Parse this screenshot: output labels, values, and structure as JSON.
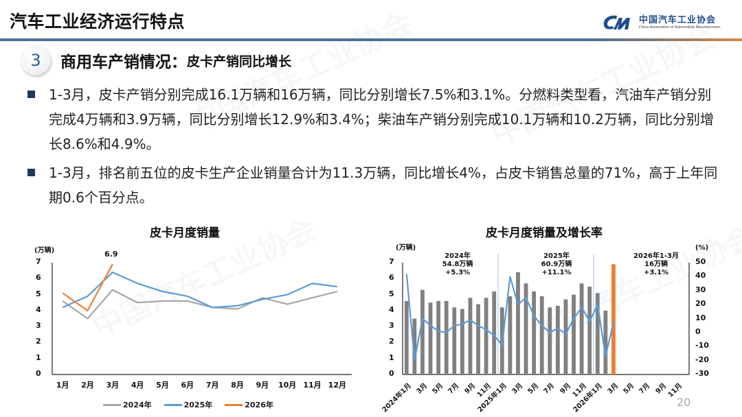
{
  "header": {
    "title": "汽车工业经济运行特点",
    "logo": {
      "name_cn": "中国汽车工业协会",
      "name_en": "China Association of Automobile Manufacturers",
      "icon": "caam-logo-icon"
    }
  },
  "section": {
    "number": "3",
    "title": "商用车产销情况：",
    "subtitle": "皮卡产销同比增长"
  },
  "bullets": [
    {
      "text": "1-3月，皮卡产销分别完成16.1万辆和16万辆，同比分别增长7.5%和3.1%。分燃料类型看，汽油车产销分别完成4万辆和3.9万辆，同比分别增长12.9%和3.4%；柴油车产销分别完成10.1万辆和10.2万辆，同比分别增长8.6%和4.9%。"
    },
    {
      "text": "1-3月，排名前五位的皮卡生产企业销量合计为11.3万辆，同比增长4%，占皮卡销售总量的71%，高于上年同期0.6个百分点。"
    }
  ],
  "colors": {
    "accent_blue": "#4d6f95",
    "accent_orange": "#d4894a",
    "series_2024": "#a6a6a6",
    "series_2025": "#5b9bd5",
    "series_2026": "#ed7d31",
    "bar_gray": "#808080",
    "bullet": "#1f3864"
  },
  "page_number": "20",
  "chart_data": [
    {
      "type": "line",
      "title": "皮卡月度销量",
      "ylabel": "(万辆)",
      "ylim": [
        0,
        7
      ],
      "yticks": [
        "0",
        "1",
        "2",
        "3",
        "4",
        "5",
        "6",
        "7"
      ],
      "categories": [
        "1月",
        "2月",
        "3月",
        "4月",
        "5月",
        "6月",
        "7月",
        "8月",
        "9月",
        "10月",
        "11月",
        "12月"
      ],
      "series": [
        {
          "name": "2024年",
          "values": [
            4.6,
            3.5,
            5.3,
            4.5,
            4.6,
            4.6,
            4.2,
            4.1,
            4.8,
            4.4,
            4.8,
            5.2
          ]
        },
        {
          "name": "2025年",
          "values": [
            4.2,
            4.9,
            6.4,
            5.7,
            5.2,
            4.9,
            4.2,
            4.3,
            4.7,
            5.0,
            5.7,
            5.5
          ]
        },
        {
          "name": "2026年",
          "values": [
            5.1,
            4.0,
            6.9
          ]
        }
      ],
      "annotations": [
        {
          "label": "6.9",
          "series": "2026年",
          "category": "3月"
        }
      ],
      "grid": false,
      "legend_position": "bottom"
    },
    {
      "type": "bar+line",
      "title": "皮卡月度销量及增长率",
      "ylabel_left": "(万辆)",
      "ylabel_right": "(%)",
      "ylim_left": [
        0,
        7
      ],
      "ylim_right": [
        -30,
        50
      ],
      "yticks_left": [
        "0",
        "1",
        "2",
        "3",
        "4",
        "5",
        "6",
        "7"
      ],
      "yticks_right": [
        "-30",
        "-20",
        "-10",
        "0",
        "10",
        "20",
        "30",
        "40",
        "50"
      ],
      "x_tick_labels": [
        "2024年1月",
        "3月",
        "5月",
        "7月",
        "9月",
        "11月",
        "2025年1月",
        "3月",
        "5月",
        "7月",
        "9月",
        "11月",
        "2026年1月",
        "3月",
        "5月",
        "7月",
        "9月",
        "11月"
      ],
      "categories": [
        "2024-01",
        "2024-02",
        "2024-03",
        "2024-04",
        "2024-05",
        "2024-06",
        "2024-07",
        "2024-08",
        "2024-09",
        "2024-10",
        "2024-11",
        "2024-12",
        "2025-01",
        "2025-02",
        "2025-03",
        "2025-04",
        "2025-05",
        "2025-06",
        "2025-07",
        "2025-08",
        "2025-09",
        "2025-10",
        "2025-11",
        "2025-12",
        "2026-01",
        "2026-02",
        "2026-03"
      ],
      "series": [
        {
          "name": "销量",
          "axis": "left",
          "kind": "bar",
          "values": [
            4.6,
            3.5,
            5.3,
            4.5,
            4.6,
            4.6,
            4.2,
            4.1,
            4.8,
            4.4,
            4.8,
            5.2,
            4.2,
            4.9,
            6.4,
            5.7,
            5.2,
            4.9,
            4.2,
            4.3,
            4.7,
            5.0,
            5.7,
            5.5,
            5.1,
            4.0,
            6.9
          ],
          "highlight_last": true
        },
        {
          "name": "增长率",
          "axis": "right",
          "kind": "line",
          "values": [
            42,
            -20,
            10,
            5,
            1,
            0,
            5,
            6,
            9,
            5,
            2,
            -2,
            -9,
            40,
            20,
            25,
            12,
            5,
            0,
            3,
            -1,
            10,
            18,
            8,
            20,
            -17,
            7
          ]
        }
      ],
      "annotations": [
        {
          "label": "2024年",
          "line2": "54.8万辆",
          "line3": "+5.3%"
        },
        {
          "label": "2025年",
          "line2": "60.9万辆",
          "line3": "+11.1%"
        },
        {
          "label": "2026年1-3月",
          "line2": "16万辆",
          "line3": "+3.1%"
        }
      ]
    }
  ]
}
